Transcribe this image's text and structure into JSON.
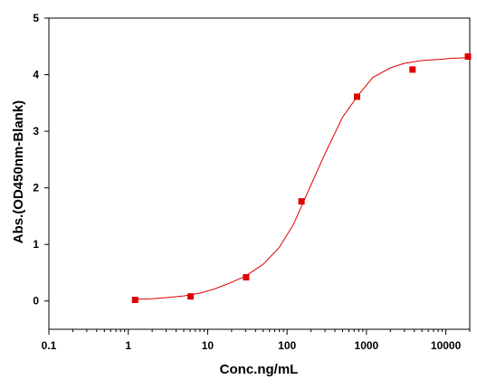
{
  "chart_data": {
    "type": "scatter",
    "title": "",
    "xlabel": "Conc.ng/mL",
    "ylabel": "Abs.(OD450nm-Blank)",
    "xscale": "log",
    "xlim": [
      0.1,
      20000
    ],
    "ylim": [
      -0.5,
      5
    ],
    "xticks": [
      0.1,
      1,
      10,
      100,
      1000,
      10000
    ],
    "xtick_labels": [
      "0.1",
      "1",
      "10",
      "100",
      "1000",
      "10000"
    ],
    "yticks": [
      0,
      1,
      2,
      3,
      4,
      5
    ],
    "ytick_labels": [
      "0",
      "1",
      "2",
      "3",
      "4",
      "5"
    ],
    "grid": false,
    "colors": {
      "series": "#e00000",
      "axis": "#000000"
    },
    "series": [
      {
        "marker": "square",
        "x": [
          1.22,
          6.1,
          30.5,
          152,
          762,
          3810,
          19000
        ],
        "y": [
          0.02,
          0.08,
          0.42,
          1.76,
          3.61,
          4.09,
          4.32
        ]
      }
    ],
    "fit_curve": {
      "type": "4PL",
      "x": [
        1.2,
        2,
        3,
        5,
        8,
        12,
        20,
        30,
        50,
        80,
        120,
        200,
        300,
        500,
        800,
        1200,
        2000,
        3000,
        5000,
        8000,
        12000,
        19000
      ],
      "y": [
        0.03,
        0.04,
        0.06,
        0.09,
        0.14,
        0.21,
        0.33,
        0.44,
        0.65,
        0.95,
        1.35,
        2.05,
        2.6,
        3.25,
        3.65,
        3.95,
        4.12,
        4.2,
        4.25,
        4.27,
        4.29,
        4.3
      ]
    }
  }
}
